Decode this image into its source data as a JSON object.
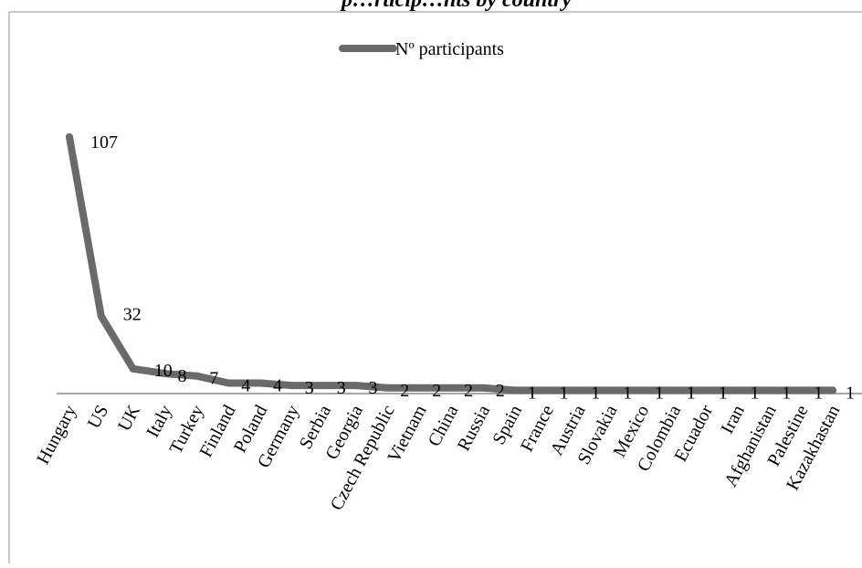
{
  "colors": {
    "series": "#6a6a6a",
    "axis": "#8c8c8c",
    "frame": "#8c8c8c",
    "text": "#000000"
  },
  "chart_data": {
    "type": "line",
    "title": "p…rticip…nts by country",
    "xlabel": "",
    "ylabel": "",
    "grid": false,
    "legend_position": "top-center",
    "ylim": [
      0,
      107
    ],
    "categories": [
      "Hungary",
      "US",
      "UK",
      "Italy",
      "Turkey",
      "Finland",
      "Poland",
      "Germany",
      "Serbia",
      "Georgia",
      "Czech Republic",
      "Vietnam",
      "China",
      "Russia",
      "Spain",
      "France",
      "Austria",
      "Slovakia",
      "Mexico",
      "Colombia",
      "Ecuador",
      "Iran",
      "Afghanistan",
      "Palestine",
      "Kazakhastan"
    ],
    "series": [
      {
        "name": "Nº participants",
        "values": [
          107,
          32,
          10,
          8,
          7,
          4,
          4,
          3,
          3,
          3,
          2,
          2,
          2,
          2,
          1,
          1,
          1,
          1,
          1,
          1,
          1,
          1,
          1,
          1,
          1
        ],
        "data_labels": [
          "107",
          "32",
          "10",
          "8",
          "7",
          "4",
          "4",
          "3",
          "3",
          "3",
          "2",
          "2",
          "2",
          "2",
          "1",
          "1",
          "1",
          "1",
          "1",
          "1",
          "1",
          "1",
          "1",
          "1",
          "1"
        ]
      }
    ]
  }
}
